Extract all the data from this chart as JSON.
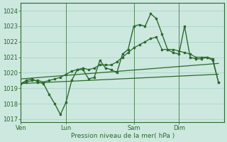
{
  "bg_color": "#cce8df",
  "grid_color": "#a8d4c8",
  "line_color": "#2d6a2d",
  "title": "Pression niveau de la mer( hPa )",
  "ylim": [
    1016.8,
    1024.5
  ],
  "yticks": [
    1017,
    1018,
    1019,
    1020,
    1021,
    1022,
    1023,
    1024
  ],
  "xtick_labels": [
    "Ven",
    "Lun",
    "Sam",
    "Dim"
  ],
  "xtick_positions": [
    0,
    48,
    120,
    168
  ],
  "xlim": [
    0,
    216
  ],
  "series_main": {
    "x": [
      0,
      6,
      12,
      18,
      24,
      30,
      36,
      42,
      48,
      54,
      60,
      66,
      72,
      78,
      84,
      90,
      96,
      102,
      108,
      114,
      120,
      126,
      132,
      138,
      144,
      150,
      156,
      162,
      168,
      174,
      180,
      186,
      192,
      198,
      204,
      210
    ],
    "y": [
      1019.3,
      1019.5,
      1019.6,
      1019.4,
      1019.3,
      1018.6,
      1018.0,
      1017.3,
      1018.1,
      1019.5,
      1020.2,
      1020.2,
      1019.6,
      1019.7,
      1020.8,
      1020.3,
      1020.2,
      1020.0,
      1021.2,
      1021.5,
      1023.0,
      1023.1,
      1023.0,
      1023.8,
      1023.5,
      1022.5,
      1021.5,
      1021.3,
      1021.2,
      1023.0,
      1021.0,
      1020.9,
      1020.9,
      1021.0,
      1020.8,
      1019.4
    ]
  },
  "series_smooth": {
    "x": [
      0,
      6,
      12,
      18,
      24,
      30,
      36,
      42,
      48,
      54,
      60,
      66,
      72,
      78,
      84,
      90,
      96,
      102,
      108,
      114,
      120,
      126,
      132,
      138,
      144,
      150,
      156,
      162,
      168,
      174,
      180,
      186,
      192,
      198,
      204,
      210
    ],
    "y": [
      1019.3,
      1019.4,
      1019.5,
      1019.5,
      1019.4,
      1019.5,
      1019.6,
      1019.7,
      1019.9,
      1020.1,
      1020.2,
      1020.3,
      1020.2,
      1020.3,
      1020.5,
      1020.5,
      1020.5,
      1020.7,
      1021.0,
      1021.3,
      1021.6,
      1021.8,
      1022.0,
      1022.2,
      1022.3,
      1021.5,
      1021.5,
      1021.5,
      1021.4,
      1021.3,
      1021.2,
      1021.0,
      1021.0,
      1021.0,
      1020.9,
      1019.4
    ]
  },
  "band_upper": {
    "x": [
      0,
      210
    ],
    "y": [
      1019.6,
      1020.6
    ]
  },
  "band_lower": {
    "x": [
      0,
      210
    ],
    "y": [
      1019.3,
      1019.9
    ]
  }
}
